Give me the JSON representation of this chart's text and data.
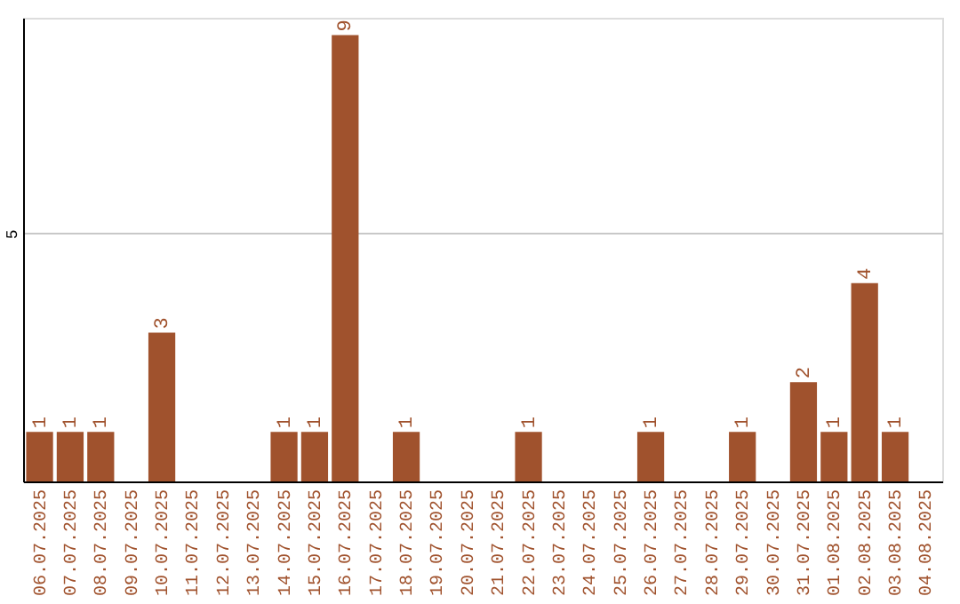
{
  "chart_data": {
    "type": "bar",
    "categories": [
      "06.07.2025",
      "07.07.2025",
      "08.07.2025",
      "09.07.2025",
      "10.07.2025",
      "11.07.2025",
      "12.07.2025",
      "13.07.2025",
      "14.07.2025",
      "15.07.2025",
      "16.07.2025",
      "17.07.2025",
      "18.07.2025",
      "19.07.2025",
      "20.07.2025",
      "21.07.2025",
      "22.07.2025",
      "23.07.2025",
      "24.07.2025",
      "25.07.2025",
      "26.07.2025",
      "27.07.2025",
      "28.07.2025",
      "29.07.2025",
      "30.07.2025",
      "31.07.2025",
      "01.08.2025",
      "02.08.2025",
      "03.08.2025",
      "04.08.2025"
    ],
    "values": [
      1,
      1,
      1,
      0,
      3,
      0,
      0,
      0,
      1,
      1,
      9,
      0,
      1,
      0,
      0,
      0,
      1,
      0,
      0,
      0,
      1,
      0,
      0,
      1,
      0,
      2,
      1,
      4,
      1,
      0
    ],
    "value_labels": [
      "1",
      "1",
      "1",
      null,
      "3",
      null,
      null,
      null,
      "1",
      "1",
      "9",
      null,
      "1",
      null,
      null,
      null,
      "1",
      null,
      null,
      null,
      "1",
      null,
      null,
      "1",
      null,
      "2",
      "1",
      "4",
      "1",
      null
    ],
    "color": "#a0522d",
    "ylim": [
      0,
      9.35
    ],
    "yticks": [
      5
    ],
    "grid": "y"
  }
}
